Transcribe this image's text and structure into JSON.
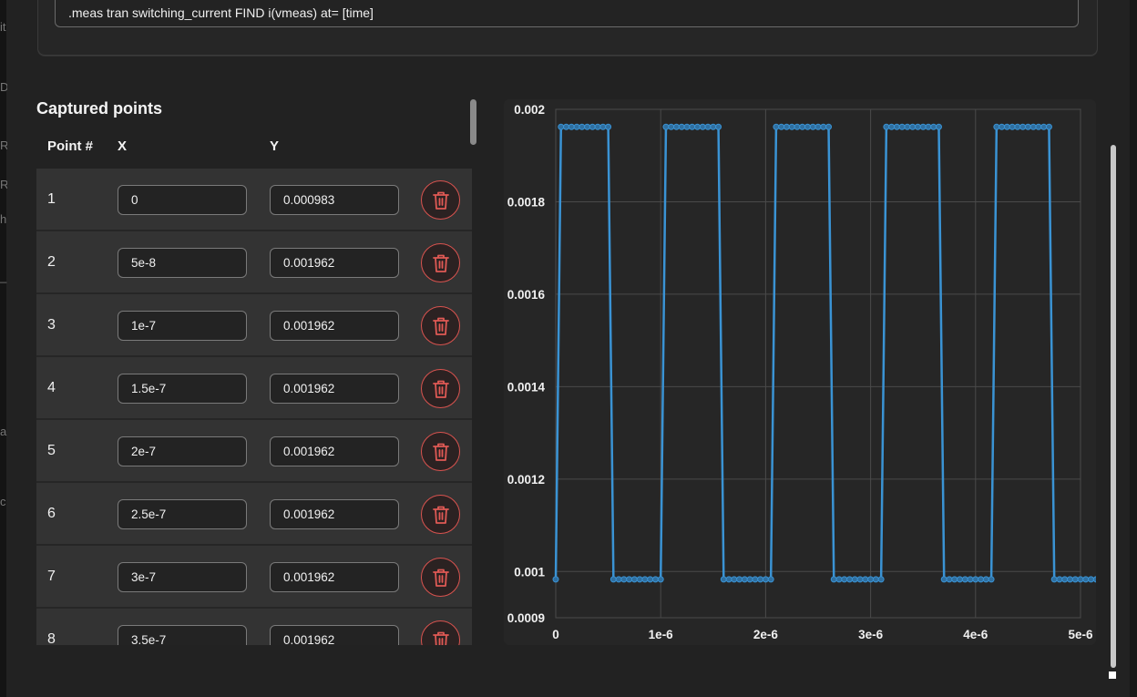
{
  "background_edge": {
    "left_glyphs": [
      "it",
      "De",
      "RI",
      "R",
      "hi",
      "_S",
      "al",
      "c"
    ]
  },
  "measurement": {
    "command": ".meas tran switching_current FIND i(vmeas) at= [time]"
  },
  "captured": {
    "title": "Captured points",
    "col_point": "Point #",
    "col_x": "X",
    "col_y": "Y",
    "rows": [
      {
        "n": "1",
        "x": "0",
        "y": "0.000983"
      },
      {
        "n": "2",
        "x": "5e-8",
        "y": "0.001962"
      },
      {
        "n": "3",
        "x": "1e-7",
        "y": "0.001962"
      },
      {
        "n": "4",
        "x": "1.5e-7",
        "y": "0.001962"
      },
      {
        "n": "5",
        "x": "2e-7",
        "y": "0.001962"
      },
      {
        "n": "6",
        "x": "2.5e-7",
        "y": "0.001962"
      },
      {
        "n": "7",
        "x": "3e-7",
        "y": "0.001962"
      },
      {
        "n": "8",
        "x": "3.5e-7",
        "y": "0.001962"
      }
    ],
    "delete_icon": "trash-icon"
  },
  "colors": {
    "line": "#3a93d4",
    "delete": "#d9534f",
    "grid": "#4a4a4a"
  },
  "chart_data": {
    "type": "line",
    "title": "",
    "xlabel": "",
    "ylabel": "",
    "xlim": [
      0,
      5e-06
    ],
    "ylim": [
      0.0009,
      0.002
    ],
    "x_ticks": [
      0,
      1e-06,
      2e-06,
      3e-06,
      4e-06,
      5e-06
    ],
    "x_tick_labels": [
      "0",
      "1e-6",
      "2e-6",
      "3e-6",
      "4e-6",
      "5e-6"
    ],
    "y_ticks": [
      0.0009,
      0.001,
      0.0012,
      0.0014,
      0.0016,
      0.0018,
      0.002
    ],
    "y_tick_labels": [
      "0.0009",
      "0.001",
      "0.0012",
      "0.0014",
      "0.0016",
      "0.0018",
      "0.002"
    ],
    "grid": true,
    "legend": "none",
    "series": [
      {
        "x_step": 5e-08,
        "high": 0.001962,
        "low": 0.000983,
        "values": [
          0.000983,
          0.001962,
          0.001962,
          0.001962,
          0.001962,
          0.001962,
          0.001962,
          0.001962,
          0.001962,
          0.001962,
          0.001962,
          0.000983,
          0.000983,
          0.000983,
          0.000983,
          0.000983,
          0.000983,
          0.000983,
          0.000983,
          0.000983,
          0.000983,
          0.001962,
          0.001962,
          0.001962,
          0.001962,
          0.001962,
          0.001962,
          0.001962,
          0.001962,
          0.001962,
          0.001962,
          0.001962,
          0.000983,
          0.000983,
          0.000983,
          0.000983,
          0.000983,
          0.000983,
          0.000983,
          0.000983,
          0.000983,
          0.000983,
          0.001962,
          0.001962,
          0.001962,
          0.001962,
          0.001962,
          0.001962,
          0.001962,
          0.001962,
          0.001962,
          0.001962,
          0.001962,
          0.000983,
          0.000983,
          0.000983,
          0.000983,
          0.000983,
          0.000983,
          0.000983,
          0.000983,
          0.000983,
          0.000983,
          0.001962,
          0.001962,
          0.001962,
          0.001962,
          0.001962,
          0.001962,
          0.001962,
          0.001962,
          0.001962,
          0.001962,
          0.001962,
          0.000983,
          0.000983,
          0.000983,
          0.000983,
          0.000983,
          0.000983,
          0.000983,
          0.000983,
          0.000983,
          0.000983,
          0.001962,
          0.001962,
          0.001962,
          0.001962,
          0.001962,
          0.001962,
          0.001962,
          0.001962,
          0.001962,
          0.001962,
          0.001962,
          0.000983,
          0.000983,
          0.000983,
          0.000983,
          0.000983,
          0.000983,
          0.000983,
          0.000983,
          0.000983,
          0.000983
        ]
      }
    ]
  }
}
